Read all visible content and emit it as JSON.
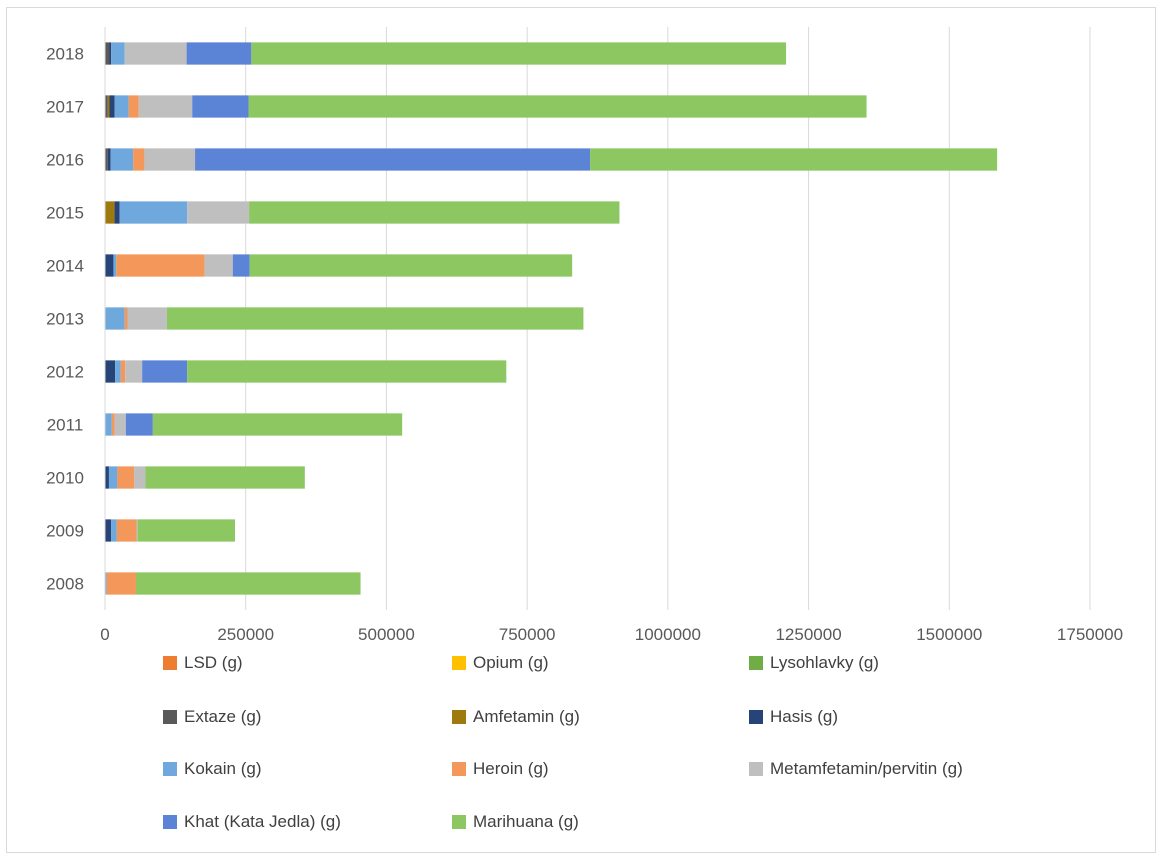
{
  "chart_data": {
    "type": "bar",
    "orientation": "horizontal",
    "stacked": true,
    "title": "",
    "xlabel": "",
    "ylabel": "",
    "xlim": [
      0,
      1750000
    ],
    "x_ticks": [
      "0",
      "250000",
      "500000",
      "750000",
      "1000000",
      "1250000",
      "1500000",
      "1750000"
    ],
    "grid": "vertical",
    "legend_position": "bottom",
    "categories": [
      "2018",
      "2017",
      "2016",
      "2015",
      "2014",
      "2013",
      "2012",
      "2011",
      "2010",
      "2009",
      "2008"
    ],
    "series": [
      {
        "name": "LSD (g)",
        "color": "#ED7D31",
        "values": [
          0,
          0,
          0,
          0,
          0,
          0,
          0,
          0,
          0,
          0,
          0
        ]
      },
      {
        "name": "Opium (g)",
        "color": "#FFC000",
        "values": [
          0,
          0,
          0,
          0,
          0,
          0,
          0,
          0,
          0,
          0,
          0
        ]
      },
      {
        "name": "Lysohlavky (g)",
        "color": "#70AD47",
        "values": [
          0,
          0,
          0,
          0,
          0,
          0,
          0,
          0,
          0,
          0,
          0
        ]
      },
      {
        "name": "Extaze (g)",
        "color": "#595959",
        "values": [
          8000,
          5000,
          5000,
          0,
          0,
          0,
          0,
          0,
          0,
          0,
          0
        ]
      },
      {
        "name": "Amfetamin (g)",
        "color": "#9E7A0E",
        "values": [
          0,
          3000,
          0,
          17000,
          0,
          0,
          0,
          0,
          0,
          0,
          0
        ]
      },
      {
        "name": "Hasis (g)",
        "color": "#264478",
        "values": [
          3000,
          9000,
          5000,
          9000,
          15000,
          0,
          18000,
          0,
          7000,
          11000,
          0
        ]
      },
      {
        "name": "Kokain (g)",
        "color": "#6FA8DC",
        "values": [
          24000,
          25000,
          40000,
          120000,
          5000,
          35000,
          10000,
          12000,
          15000,
          10000,
          3000
        ]
      },
      {
        "name": "Heroin (g)",
        "color": "#F4975A",
        "values": [
          0,
          18000,
          20000,
          0,
          157000,
          5000,
          8000,
          5000,
          30000,
          35000,
          52000
        ]
      },
      {
        "name": "Metamfetamin/pervitin (g)",
        "color": "#BFBFBF",
        "values": [
          110000,
          95000,
          90000,
          110000,
          50000,
          70000,
          30000,
          20000,
          20000,
          2000,
          0
        ]
      },
      {
        "name": "Khat (Kata Jedla) (g)",
        "color": "#5B84D6",
        "values": [
          115000,
          100000,
          702000,
          0,
          30000,
          0,
          80000,
          48000,
          0,
          0,
          0
        ]
      },
      {
        "name": "Marihuana (g)",
        "color": "#8CC762",
        "values": [
          950000,
          1098000,
          723000,
          658000,
          573000,
          740000,
          567000,
          443000,
          283000,
          173000,
          399000
        ]
      }
    ]
  }
}
